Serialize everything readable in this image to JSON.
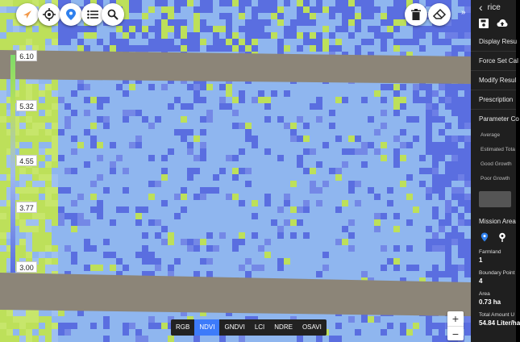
{
  "toolbar": {
    "left_icons": [
      "compass-icon",
      "crosshair-icon",
      "map-pin-icon",
      "list-icon",
      "search-icon"
    ],
    "right_icons": [
      "trash-icon",
      "eraser-icon"
    ],
    "collapse_label": "»"
  },
  "legend": {
    "ticks": [
      "6.10",
      "5.32",
      "4.55",
      "3.77",
      "3.00"
    ]
  },
  "band_tabs": {
    "items": [
      "RGB",
      "NDVI",
      "GNDVI",
      "LCI",
      "NDRE",
      "OSAVI"
    ],
    "active": "NDVI"
  },
  "zoom": {
    "in_label": "+",
    "out_label": "−"
  },
  "panel": {
    "back_label": "‹",
    "title": "rice",
    "menu": {
      "display": "Display Resu",
      "force": "Force Set Cal",
      "modify": "Modify Resul",
      "prescription": "Prescription"
    },
    "parameter_section": "Parameter Co",
    "param_rows": [
      "Average",
      "Estimated Tota",
      "Good Growth",
      "Poor Growth"
    ],
    "mission_section": "Mission Area",
    "farmland": {
      "label": "Farmland",
      "value": "1"
    },
    "boundary": {
      "label": "Boundary Point",
      "value": "4"
    },
    "area": {
      "label": "Area",
      "value": "0.73 ha"
    },
    "total": {
      "label": "Total Amount U",
      "value": "54.84 Liter/ha"
    }
  },
  "colors": {
    "dark_blue": "#5a6ee0",
    "light_blue": "#9fc0f0",
    "green": "#bde05a",
    "soil": "#8c8578",
    "panel_bg": "#1f1f1f",
    "accent": "#3d7bfa"
  }
}
